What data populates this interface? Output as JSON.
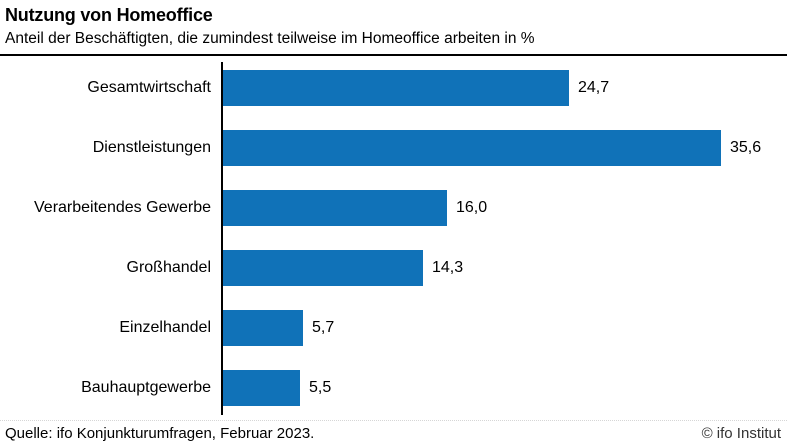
{
  "header": {
    "title": "Nutzung von Homeoffice",
    "subtitle": "Anteil der Beschäftigten, die zumindest teilweise im Homeoffice arbeiten in %"
  },
  "footer": {
    "source": "Quelle: ifo Konjunkturumfragen, Februar 2023.",
    "copyright": "© ifo Institut"
  },
  "colors": {
    "bar": "#1072b8",
    "axis": "#000000",
    "top_rule": "#000000",
    "footer_dotted_rule": "#d6d6d6",
    "text": "#000000",
    "copyright_text": "#333333"
  },
  "chart_data": {
    "type": "bar",
    "orientation": "horizontal",
    "title": "Nutzung von Homeoffice",
    "subtitle": "Anteil der Beschäftigten, die zumindest teilweise im Homeoffice arbeiten in %",
    "categories": [
      "Gesamtwirtschaft",
      "Dienstleistungen",
      "Verarbeitendes Gewerbe",
      "Großhandel",
      "Einzelhandel",
      "Bauhauptgewerbe"
    ],
    "values": [
      24.7,
      35.6,
      16.0,
      14.3,
      5.7,
      5.5
    ],
    "value_labels": [
      "24,7",
      "35,6",
      "16,0",
      "14,3",
      "5,7",
      "5,5"
    ],
    "unit": "%",
    "xlim": [
      0,
      40
    ],
    "grid": false,
    "legend": false,
    "bar_value_labels_shown": true
  }
}
